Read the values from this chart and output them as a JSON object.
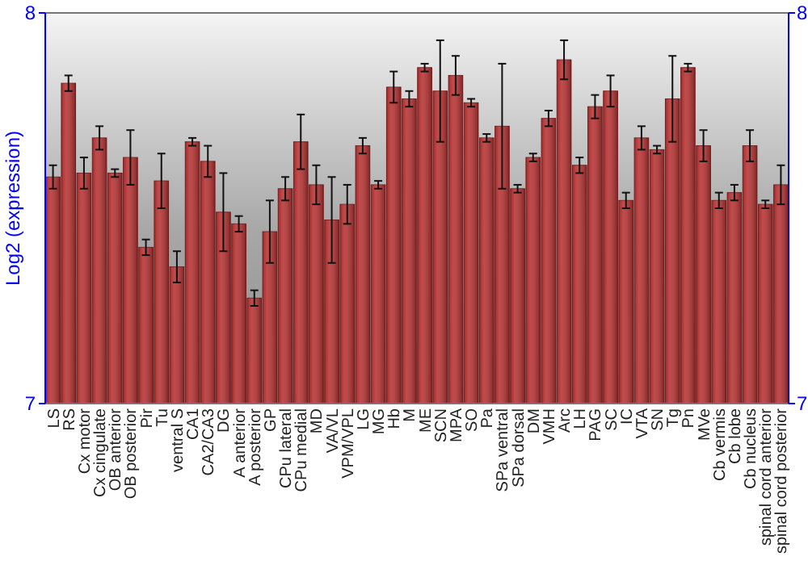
{
  "chart_data": {
    "type": "bar",
    "ylabel": "Log2 (expression)",
    "categories": [
      "LS",
      "RS",
      "Cx motor",
      "Cx cingulate",
      "OB anterior",
      "OB posterior",
      "Pir",
      "Tu",
      "ventral S",
      "CA1",
      "CA2/CA3",
      "DG",
      "A anterior",
      "A posterior",
      "GP",
      "CPu lateral",
      "CPu medial",
      "MD",
      "VA/VL",
      "VPM/VPL",
      "LG",
      "MG",
      "Hb",
      "M",
      "ME",
      "SCN",
      "MPA",
      "SO",
      "Pa",
      "SPa ventral",
      "SPa dorsal",
      "DM",
      "VMH",
      "Arc",
      "LH",
      "PAG",
      "SC",
      "IC",
      "VTA",
      "SN",
      "Tg",
      "Pn",
      "MVe",
      "Cb vermis",
      "Cb lobe",
      "Cb nucleus",
      "spinal cord anterior",
      "spinal cord posterior"
    ],
    "values": [
      7.58,
      7.82,
      7.59,
      7.68,
      7.59,
      7.63,
      7.4,
      7.57,
      7.35,
      7.67,
      7.62,
      7.49,
      7.46,
      7.27,
      7.44,
      7.55,
      7.67,
      7.56,
      7.47,
      7.51,
      7.66,
      7.56,
      7.81,
      7.78,
      7.86,
      7.8,
      7.84,
      7.77,
      7.68,
      7.71,
      7.55,
      7.63,
      7.73,
      7.88,
      7.61,
      7.76,
      7.8,
      7.52,
      7.68,
      7.65,
      7.78,
      7.86,
      7.66,
      7.52,
      7.54,
      7.66,
      7.51,
      7.56
    ],
    "errors": [
      0.03,
      0.02,
      0.04,
      0.03,
      0.01,
      0.07,
      0.02,
      0.07,
      0.04,
      0.01,
      0.04,
      0.1,
      0.02,
      0.02,
      0.08,
      0.03,
      0.07,
      0.05,
      0.11,
      0.05,
      0.02,
      0.01,
      0.04,
      0.02,
      0.01,
      0.13,
      0.05,
      0.01,
      0.01,
      0.16,
      0.01,
      0.01,
      0.02,
      0.05,
      0.02,
      0.03,
      0.04,
      0.02,
      0.03,
      0.01,
      0.11,
      0.01,
      0.04,
      0.02,
      0.02,
      0.04,
      0.01,
      0.05
    ],
    "color": "#b83232",
    "ylim": [
      7,
      8
    ],
    "yticks": [
      7,
      8
    ],
    "y2lim": [
      7,
      8
    ],
    "y2ticks": [
      7,
      8
    ]
  }
}
